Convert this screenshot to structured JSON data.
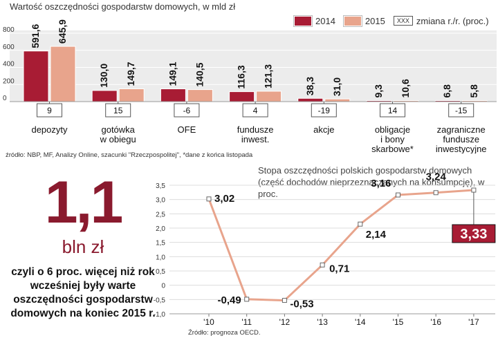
{
  "chart_data": [
    {
      "type": "bar",
      "title": "Wartość oszczędności gospodarstw domowych, w mld zł",
      "categories": [
        "depozyty",
        "gotówka w obiegu",
        "OFE",
        "fundusze inwest.",
        "akcje",
        "obligacje i bony skarbowe*",
        "zagraniczne fundusze inwestycyjne"
      ],
      "category_lines": [
        [
          "depozyty"
        ],
        [
          "gotówka",
          "w obiegu"
        ],
        [
          "OFE"
        ],
        [
          "fundusze",
          "inwest."
        ],
        [
          "akcje"
        ],
        [
          "obligacje",
          "i bony",
          "skarbowe*"
        ],
        [
          "zagraniczne",
          "fundusze",
          "inwestycyjne"
        ]
      ],
      "series": [
        {
          "name": "2014",
          "values": [
            591.6,
            130.0,
            149.1,
            116.3,
            38.3,
            9.3,
            6.8
          ],
          "labels": [
            "591,6",
            "130,0",
            "149,1",
            "116,3",
            "38,3",
            "9,3",
            "6,8"
          ],
          "color": "#a81c34"
        },
        {
          "name": "2015",
          "values": [
            645.9,
            149.7,
            140.5,
            121.3,
            31.0,
            10.6,
            5.8
          ],
          "labels": [
            "645,9",
            "149,7",
            "140,5",
            "121,3",
            "31,0",
            "10,6",
            "5,8"
          ],
          "color": "#e8a48c"
        }
      ],
      "change_yoy": [
        "9",
        "15",
        "-6",
        "4",
        "-19",
        "14",
        "-15"
      ],
      "change_legend": {
        "box": "XXX",
        "label": "zmiana r./r. (proc.)"
      },
      "yticks": [
        "800",
        "600",
        "400",
        "200",
        "0"
      ],
      "ylim": [
        0,
        800
      ],
      "legend_position": "top-right",
      "grid": true,
      "source": "źródło: NBP, MF, Analizy Online, szacunki \"Rzeczpospolitej\", *dane z końca listopada"
    },
    {
      "type": "line",
      "title": "Stopa oszczędności polskich gospodarstw domowych (część dochodów nieprzeznaczanych na konsumpcję), w proc.",
      "x": [
        "'10",
        "'11",
        "'12",
        "'13",
        "'14",
        "'15",
        "'16",
        "'17"
      ],
      "values": [
        3.02,
        -0.49,
        -0.53,
        0.71,
        2.14,
        3.16,
        3.24,
        3.33
      ],
      "labels": [
        "3,02",
        "-0,49",
        "-0,53",
        "0,71",
        "2,14",
        "3,16",
        "3,24",
        "3,33"
      ],
      "yticks": [
        "3,5",
        "3,0",
        "2,5",
        "2,0",
        "1,5",
        "1,0",
        "0,5",
        "0",
        "-0,5",
        "-1,0"
      ],
      "ylim": [
        -1.0,
        3.5
      ],
      "grid": true,
      "line_color": "#e8a48c",
      "highlight_color": "#a81c34",
      "source": "Źródło: prognoza OECD."
    }
  ],
  "highlight": {
    "value": "1,1",
    "unit": "bln zł",
    "text": "czyli o 6 proc. więcej niż rok wcześniej były warte oszczędności gospodarstw domowych na koniec 2015 r."
  }
}
